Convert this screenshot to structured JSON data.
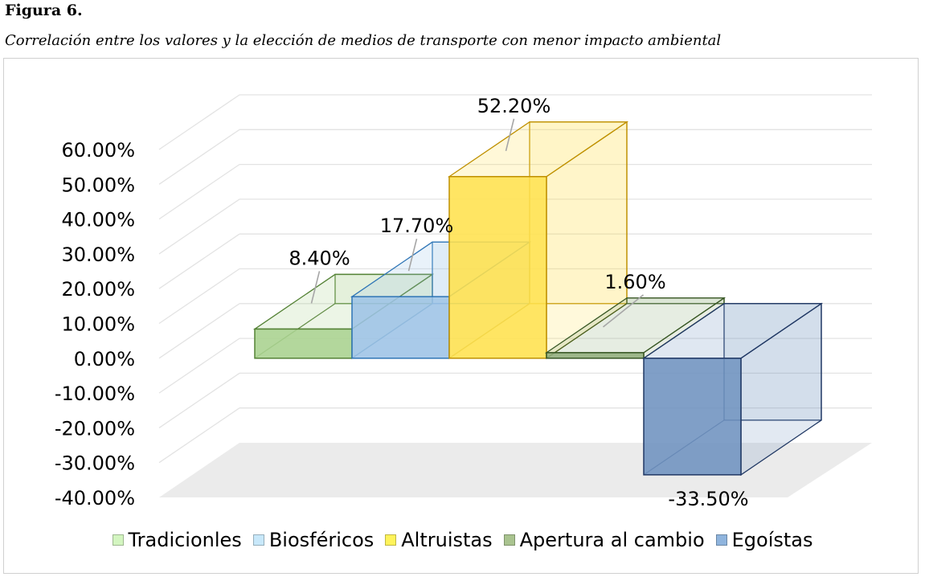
{
  "figure": {
    "label": "Figura 6.",
    "caption": "Correlación entre los valores y la elección de medios de transporte con menor impacto ambiental"
  },
  "chart_data": {
    "type": "bar",
    "style": "3d-column",
    "categories": [
      "Tradicionles",
      "Biosféricos",
      "Altruistas",
      "Apertura al cambio",
      "Egoístas"
    ],
    "values": [
      8.4,
      17.7,
      52.2,
      1.6,
      -33.5
    ],
    "data_labels": [
      "8.40%",
      "17.70%",
      "52.20%",
      "1.60%",
      "-33.50%"
    ],
    "ytick_labels": [
      "60.00%",
      "50.00%",
      "40.00%",
      "30.00%",
      "20.00%",
      "10.00%",
      "0.00%",
      "-10.00%",
      "-20.00%",
      "-30.00%",
      "-40.00%"
    ],
    "ylim": [
      -40,
      60
    ],
    "grid": true,
    "legend_position": "bottom",
    "colors": {
      "Tradicionles": {
        "fill": "#a9d18e",
        "stroke": "#548235",
        "legend": "#d3f5c0"
      },
      "Biosféricos": {
        "fill": "#9dc3e6",
        "stroke": "#2e75b6",
        "legend": "#c8e8fa"
      },
      "Altruistas": {
        "fill": "#ffe14d",
        "stroke": "#bf9000",
        "legend": "#fff35a"
      },
      "Apertura al cambio": {
        "fill": "#8fac7a",
        "stroke": "#375623",
        "legend": "#a9c38f"
      },
      "Egoístas": {
        "fill": "#6e92bf",
        "stroke": "#203864",
        "legend": "#8fb4dd"
      }
    }
  }
}
